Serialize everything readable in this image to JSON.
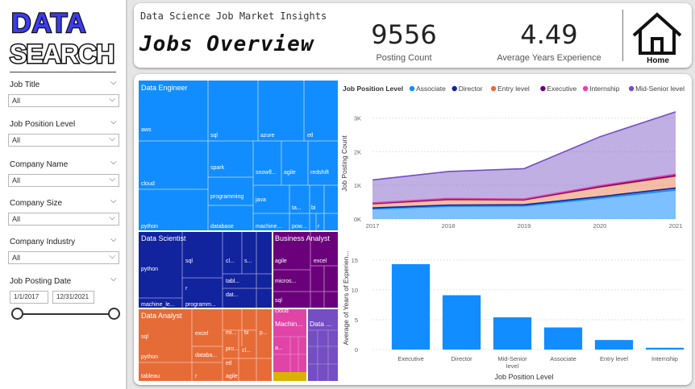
{
  "logo": {
    "line1": "DATA",
    "line2": "SEARCH"
  },
  "slicers": [
    {
      "label": "Job Title",
      "value": "All"
    },
    {
      "label": "Job Position Level",
      "value": "All"
    },
    {
      "label": "Company Name",
      "value": "All"
    },
    {
      "label": "Company Size",
      "value": "All"
    },
    {
      "label": "Company Industry",
      "value": "All"
    }
  ],
  "date_slicer": {
    "label": "Job Posting Date",
    "start": "1/1/2017",
    "end": "12/31/2021"
  },
  "header": {
    "subtitle": "Data Science Job Market Insights",
    "title": "Jobs Overview",
    "kpi_count_value": "9556",
    "kpi_count_label": "Posting Count",
    "kpi_exp_value": "4.49",
    "kpi_exp_label": "Average Years Experience",
    "home_label": "Home"
  },
  "colors": {
    "blue": "#118dff",
    "navy": "#12239e",
    "orange": "#e66c37",
    "purple": "#6b007b",
    "magenta": "#e044a7",
    "violet": "#744ec2",
    "gold": "#d9b300"
  },
  "treemap": {
    "tiles": [
      {
        "group": "Data Engineer",
        "skills": [
          "aws",
          "sql",
          "azure",
          "etl",
          "cloud",
          "spark",
          "snowfl...",
          "agile",
          "redshift",
          "programming",
          "java",
          "ta...",
          "bi",
          "python",
          "database",
          "machine...",
          "pow...",
          "r"
        ]
      },
      {
        "group": "Data Scientist",
        "skills": [
          "python",
          "sql",
          "cl...",
          "s...",
          "r",
          "tabl...",
          "dat...",
          "machine_le...",
          "programm..."
        ]
      },
      {
        "group": "Business Analyst",
        "skills": [
          "agile",
          "excel",
          "micros...",
          "sql",
          "cloud"
        ]
      },
      {
        "group": "Data Analyst",
        "skills": [
          "sql",
          "excel",
          "mi...",
          "bi",
          "p...",
          "python",
          "databa...",
          "pro...",
          "cl...",
          "tableau",
          "r",
          "agile",
          "etl"
        ]
      },
      {
        "group": "Machin...",
        "skills": [
          "a..."
        ]
      },
      {
        "group": "Data ...",
        "skills": []
      }
    ]
  },
  "chart_data": [
    {
      "type": "area",
      "title": "Job Position Level",
      "legend_title": "Job Position Level",
      "legend": [
        "Associate",
        "Director",
        "Entry level",
        "Executive",
        "Internship",
        "Mid-Senior level"
      ],
      "x": [
        2017,
        2018,
        2019,
        2020,
        2021
      ],
      "x_labels": [
        "2017",
        "2018",
        "2019",
        "2020",
        "2021"
      ],
      "ylabel": "Job Posting Count",
      "y_ticks": [
        "0K",
        "1K",
        "2K",
        "3K"
      ],
      "ylim": [
        0,
        3200
      ],
      "series": [
        {
          "name": "Associate",
          "values": [
            300,
            380,
            390,
            620,
            860
          ]
        },
        {
          "name": "Director",
          "values": [
            30,
            35,
            35,
            45,
            60
          ]
        },
        {
          "name": "Entry level",
          "values": [
            120,
            160,
            140,
            280,
            350
          ]
        },
        {
          "name": "Executive",
          "values": [
            10,
            10,
            10,
            15,
            20
          ]
        },
        {
          "name": "Internship",
          "values": [
            20,
            25,
            20,
            30,
            40
          ]
        },
        {
          "name": "Mid-Senior level",
          "values": [
            680,
            800,
            900,
            1450,
            1850
          ]
        }
      ]
    },
    {
      "type": "bar",
      "xlabel": "Job Position Level",
      "ylabel": "Average of Years of Experien...",
      "categories": [
        "Executive",
        "Director",
        "Mid-Senior level",
        "Associate",
        "Entry level",
        "Internship"
      ],
      "values": [
        14.3,
        9.1,
        5.4,
        3.7,
        1.6,
        0.3
      ],
      "y_ticks": [
        "0",
        "5",
        "10",
        "15"
      ],
      "ylim": [
        0,
        17
      ]
    }
  ]
}
